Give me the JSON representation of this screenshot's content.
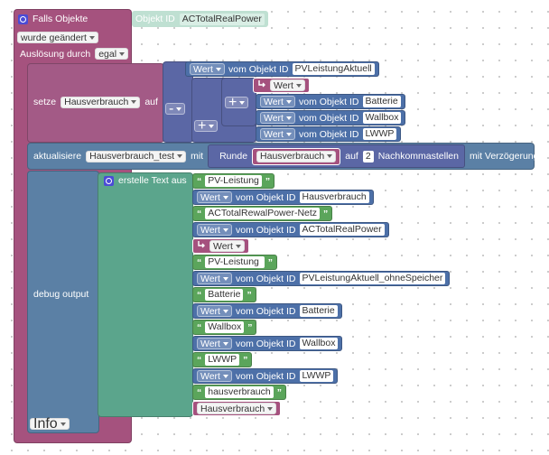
{
  "event": {
    "title": "Falls Objekte",
    "object_label": "Objekt ID",
    "object_id": "ACTotalRealPower",
    "change": "wurde geändert",
    "trigger_label": "Auslösung durch",
    "trigger": "egal"
  },
  "set": {
    "label": "setze",
    "variable": "Hausverbrauch",
    "to": "auf",
    "minus": "-",
    "plus_outer": "+",
    "plus_inner": "+",
    "first": {
      "dropdown": "Wert",
      "label": "vom Objekt ID",
      "id": "PVLeistungAktuell"
    },
    "getter": "Wert",
    "battery": {
      "dropdown": "Wert",
      "label": "vom Objekt ID",
      "id": "Batterie"
    },
    "wallbox": {
      "dropdown": "Wert",
      "label": "vom Objekt ID",
      "id": "Wallbox"
    },
    "lwwp": {
      "dropdown": "Wert",
      "label": "vom Objekt ID",
      "id": "LWWP"
    }
  },
  "update": {
    "label": "aktualisiere",
    "target": "Hausverbrauch_test",
    "with": "mit",
    "round": "Runde",
    "variable": "Hausverbrauch",
    "to": "auf",
    "digits": 2,
    "digits_label": "Nachkommastellen",
    "delay": "mit Verzögerung"
  },
  "debug": {
    "label": "debug output",
    "level": "Info",
    "join": "erstelle Text aus",
    "items": [
      {
        "text": "PV-Leistung"
      },
      {
        "dropdown": "Wert",
        "label": "vom Objekt ID",
        "id": "Hausverbrauch"
      },
      {
        "text": "ACTotalRewalPower-Netz"
      },
      {
        "dropdown": "Wert",
        "label": "vom Objekt ID",
        "id": "ACTotalRealPower"
      },
      {
        "getter": "Wert"
      },
      {
        "text": "PV-Leistung "
      },
      {
        "dropdown": "Wert",
        "label": "vom Objekt ID",
        "id": "PVLeistungAktuell_ohneSpeicher"
      },
      {
        "text": "Batterie"
      },
      {
        "dropdown": "Wert",
        "label": "vom Objekt ID",
        "id": "Batterie"
      },
      {
        "text": "Wallbox"
      },
      {
        "dropdown": "Wert",
        "label": "vom Objekt ID",
        "id": "Wallbox"
      },
      {
        "text": "LWWP"
      },
      {
        "dropdown": "Wert",
        "label": "vom Objekt ID",
        "id": "LWWP"
      },
      {
        "text": "hausverbrauch"
      },
      {
        "variable": "Hausverbrauch"
      }
    ]
  },
  "quote_marks": {
    "open": "“",
    "close": "”"
  }
}
